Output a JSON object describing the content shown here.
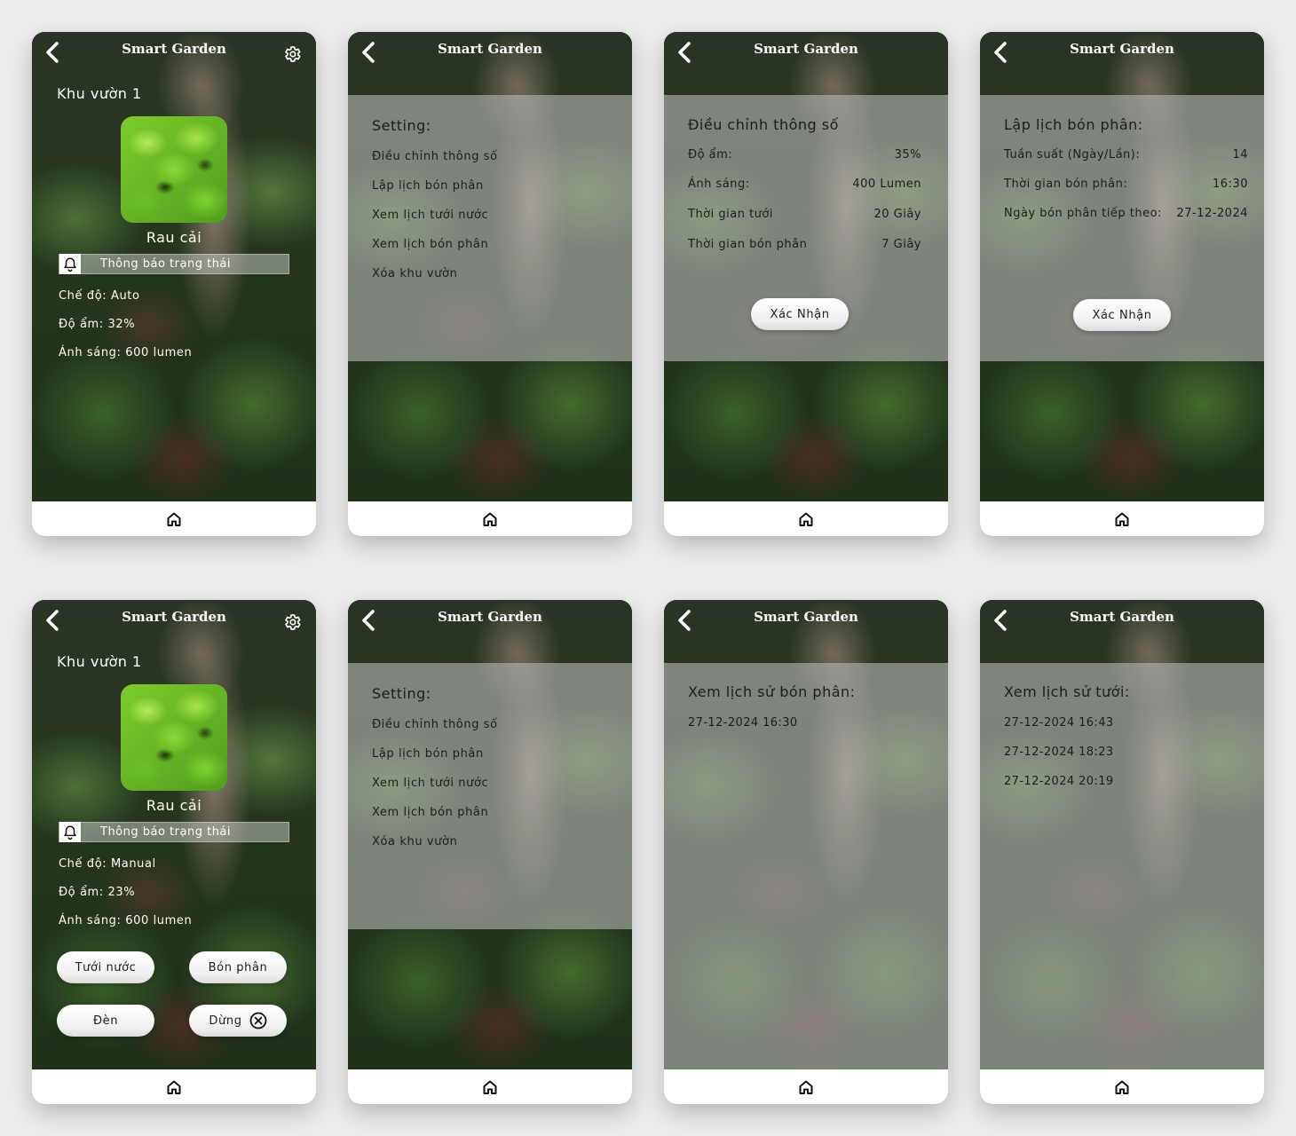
{
  "app": {
    "title": "Smart Garden"
  },
  "screens": {
    "home_auto": {
      "garden_name": "Khu vườn 1",
      "plant_name": "Rau cải",
      "notify_label": "Thông báo trạng thái",
      "mode": "Chế độ: Auto",
      "humidity": "Độ ẩm: 32%",
      "light": "Ánh sáng: 600 lumen"
    },
    "settings_1": {
      "heading": "Setting:",
      "items": [
        "Điều chỉnh thông số",
        "Lập lịch bón phân",
        "Xem lịch tưới nước",
        "Xem lịch bón phân",
        "Xóa khu vườn"
      ]
    },
    "adjust": {
      "heading": "Điều chỉnh thông số",
      "rows": [
        {
          "label": "Độ ẩm:",
          "value": "35%"
        },
        {
          "label": "Ánh sáng:",
          "value": "400 Lumen"
        },
        {
          "label": "Thời gian tưới",
          "value": "20 Giây"
        },
        {
          "label": "Thời gian bón phân",
          "value": "7 Giây"
        }
      ],
      "confirm": "Xác Nhận"
    },
    "schedule": {
      "heading": "Lập lịch bón phân:",
      "rows": [
        {
          "label": "Tuần suất (Ngày/Lần):",
          "value": "14"
        },
        {
          "label": "Thời gian bón phân:",
          "value": "16:30"
        },
        {
          "label": "Ngày bón phân tiếp theo:",
          "value": "27-12-2024"
        }
      ],
      "confirm": "Xác Nhận"
    },
    "home_manual": {
      "garden_name": "Khu vườn 1",
      "plant_name": "Rau cải",
      "notify_label": "Thông báo trạng thái",
      "mode": "Chế độ: Manual",
      "humidity": "Độ ẩm: 23%",
      "light": "Ánh sáng: 600 lumen",
      "buttons": {
        "water": "Tưới nước",
        "fertilize": "Bón phân",
        "light": "Đèn",
        "stop": "Dừng"
      }
    },
    "settings_2": {
      "heading": "Setting:",
      "items": [
        "Điều chỉnh thông số",
        "Lập lịch bón phân",
        "Xem lịch tưới nước",
        "Xem lịch bón phân",
        "Xóa khu vườn"
      ]
    },
    "fert_history": {
      "heading": "Xem lịch sử bón phân:",
      "entries": [
        "27-12-2024 16:30"
      ]
    },
    "water_history": {
      "heading": "Xem lịch sử tưới:",
      "entries": [
        "27-12-2024 16:43",
        "27-12-2024 18:23",
        "27-12-2024 20:19"
      ]
    }
  },
  "icons": {
    "back": "back-arrow-icon",
    "settings": "gear-icon",
    "home": "home-icon",
    "notify": "bell-icon",
    "stop": "close-circle-icon"
  }
}
